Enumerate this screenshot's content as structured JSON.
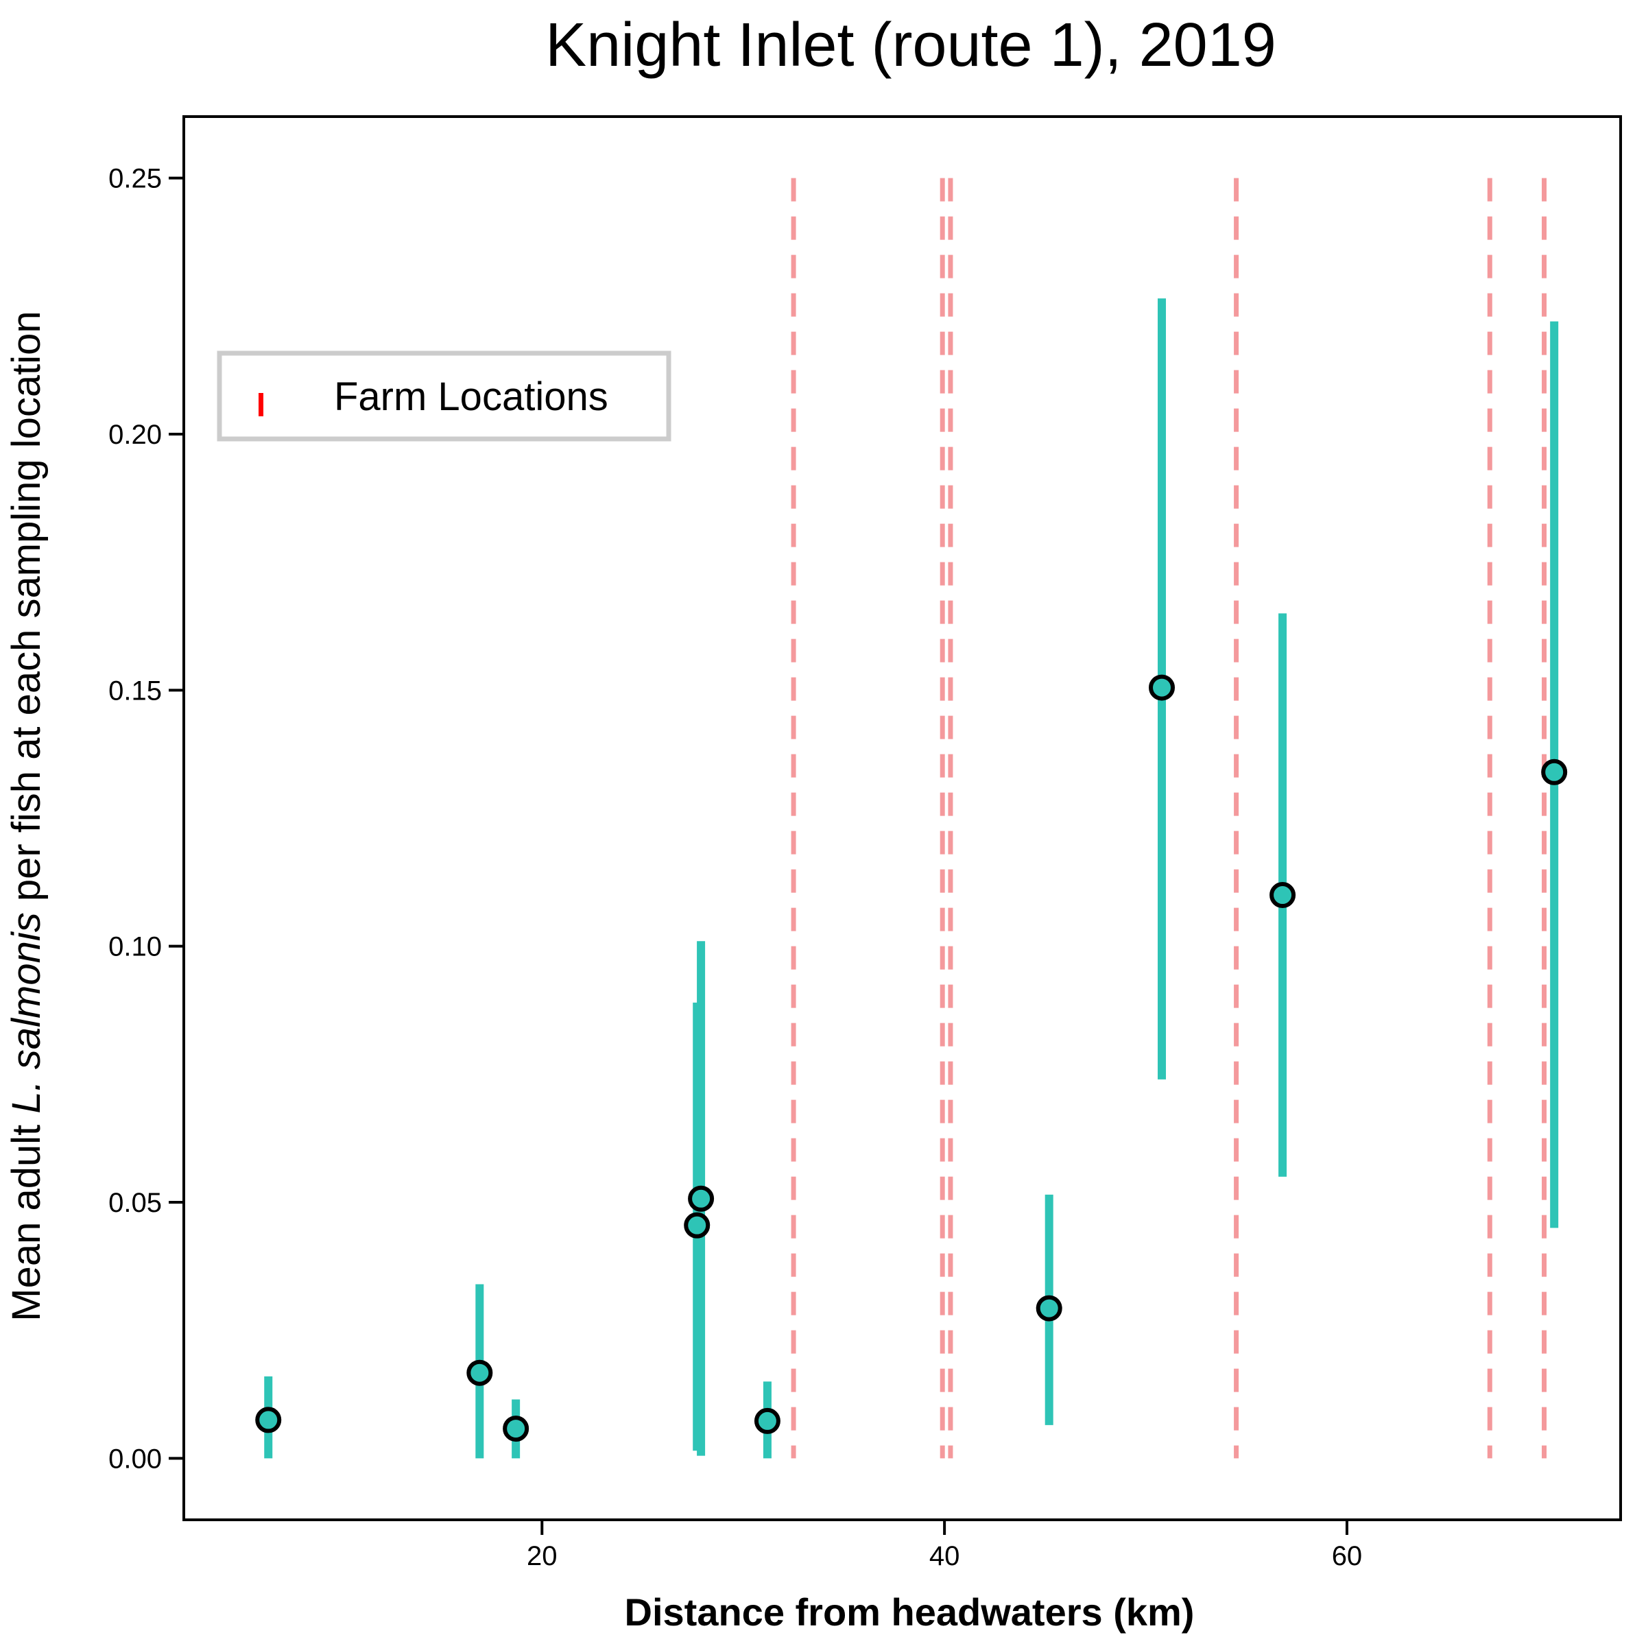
{
  "chart_data": {
    "type": "scatter",
    "title": "Knight Inlet (route 1), 2019",
    "xlabel": "Distance from headwaters (km)",
    "ylabel_parts": [
      "Mean adult ",
      "L. salmonis",
      " per fish at each sampling location"
    ],
    "xlim": [
      2.2,
      73.6
    ],
    "ylim": [
      -0.012,
      0.262
    ],
    "xticks": [
      20,
      40,
      60
    ],
    "xtick_labels": [
      "20",
      "40",
      "60"
    ],
    "yticks": [
      0.0,
      0.05,
      0.1,
      0.15,
      0.2,
      0.25
    ],
    "ytick_labels": [
      "0.00",
      "0.05",
      "0.10",
      "0.15",
      "0.20",
      "0.25"
    ],
    "grid": false,
    "legend": {
      "position": "upper-left",
      "label": "Farm Locations"
    },
    "colors": {
      "points": "#2ec4b6",
      "errorbars": "#2ec4b6",
      "farm_lines": "#f4999c",
      "legend_marker": "#ff0000"
    },
    "farm_locations": [
      32.5,
      39.9,
      40.3,
      54.5,
      67.1,
      69.8
    ],
    "farm_line_top": 0.25,
    "points": [
      {
        "x": 6.4,
        "y": 0.0075,
        "lo": 0.0,
        "hi": 0.016
      },
      {
        "x": 16.9,
        "y": 0.0167,
        "lo": 0.0,
        "hi": 0.034
      },
      {
        "x": 18.7,
        "y": 0.0058,
        "lo": 0.0,
        "hi": 0.0115
      },
      {
        "x": 27.7,
        "y": 0.0455,
        "lo": 0.0015,
        "hi": 0.089
      },
      {
        "x": 27.9,
        "y": 0.0507,
        "lo": 0.0005,
        "hi": 0.101
      },
      {
        "x": 31.2,
        "y": 0.0073,
        "lo": 0.0,
        "hi": 0.015
      },
      {
        "x": 45.2,
        "y": 0.0293,
        "lo": 0.0065,
        "hi": 0.0515
      },
      {
        "x": 50.8,
        "y": 0.1505,
        "lo": 0.074,
        "hi": 0.2265
      },
      {
        "x": 56.8,
        "y": 0.11,
        "lo": 0.055,
        "hi": 0.165
      },
      {
        "x": 70.3,
        "y": 0.134,
        "lo": 0.045,
        "hi": 0.222
      }
    ]
  }
}
